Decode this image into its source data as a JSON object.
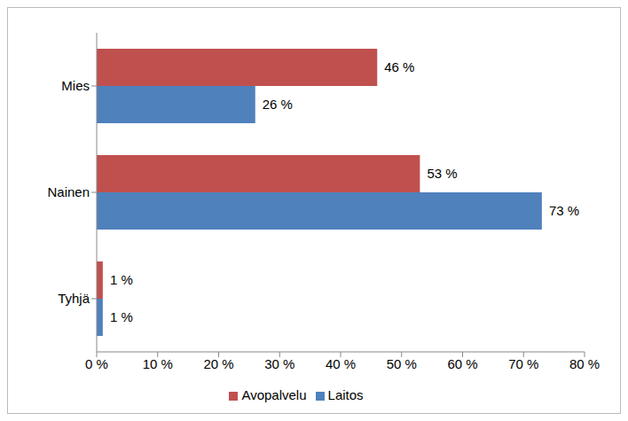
{
  "chart_data": {
    "type": "bar",
    "orientation": "horizontal",
    "categories": [
      "Mies",
      "Nainen",
      "Tyhjä"
    ],
    "series": [
      {
        "name": "Avopalvelu",
        "color": "#c0504d",
        "values": [
          46,
          53,
          1
        ],
        "value_labels": [
          "46 %",
          "53 %",
          "1 %"
        ]
      },
      {
        "name": "Laitos",
        "color": "#4f81bd",
        "values": [
          26,
          73,
          1
        ],
        "value_labels": [
          "26 %",
          "73 %",
          "1 %"
        ]
      }
    ],
    "xlim": [
      0,
      80
    ],
    "xticks": [
      {
        "value": 0,
        "label": "0 %"
      },
      {
        "value": 10,
        "label": "10 %"
      },
      {
        "value": 20,
        "label": "20 %"
      },
      {
        "value": 30,
        "label": "30 %"
      },
      {
        "value": 40,
        "label": "40 %"
      },
      {
        "value": 50,
        "label": "50 %"
      },
      {
        "value": 60,
        "label": "60 %"
      },
      {
        "value": 70,
        "label": "70 %"
      },
      {
        "value": 80,
        "label": "80 %"
      }
    ],
    "grid": false,
    "legend": "bottom",
    "data_labels": true
  }
}
